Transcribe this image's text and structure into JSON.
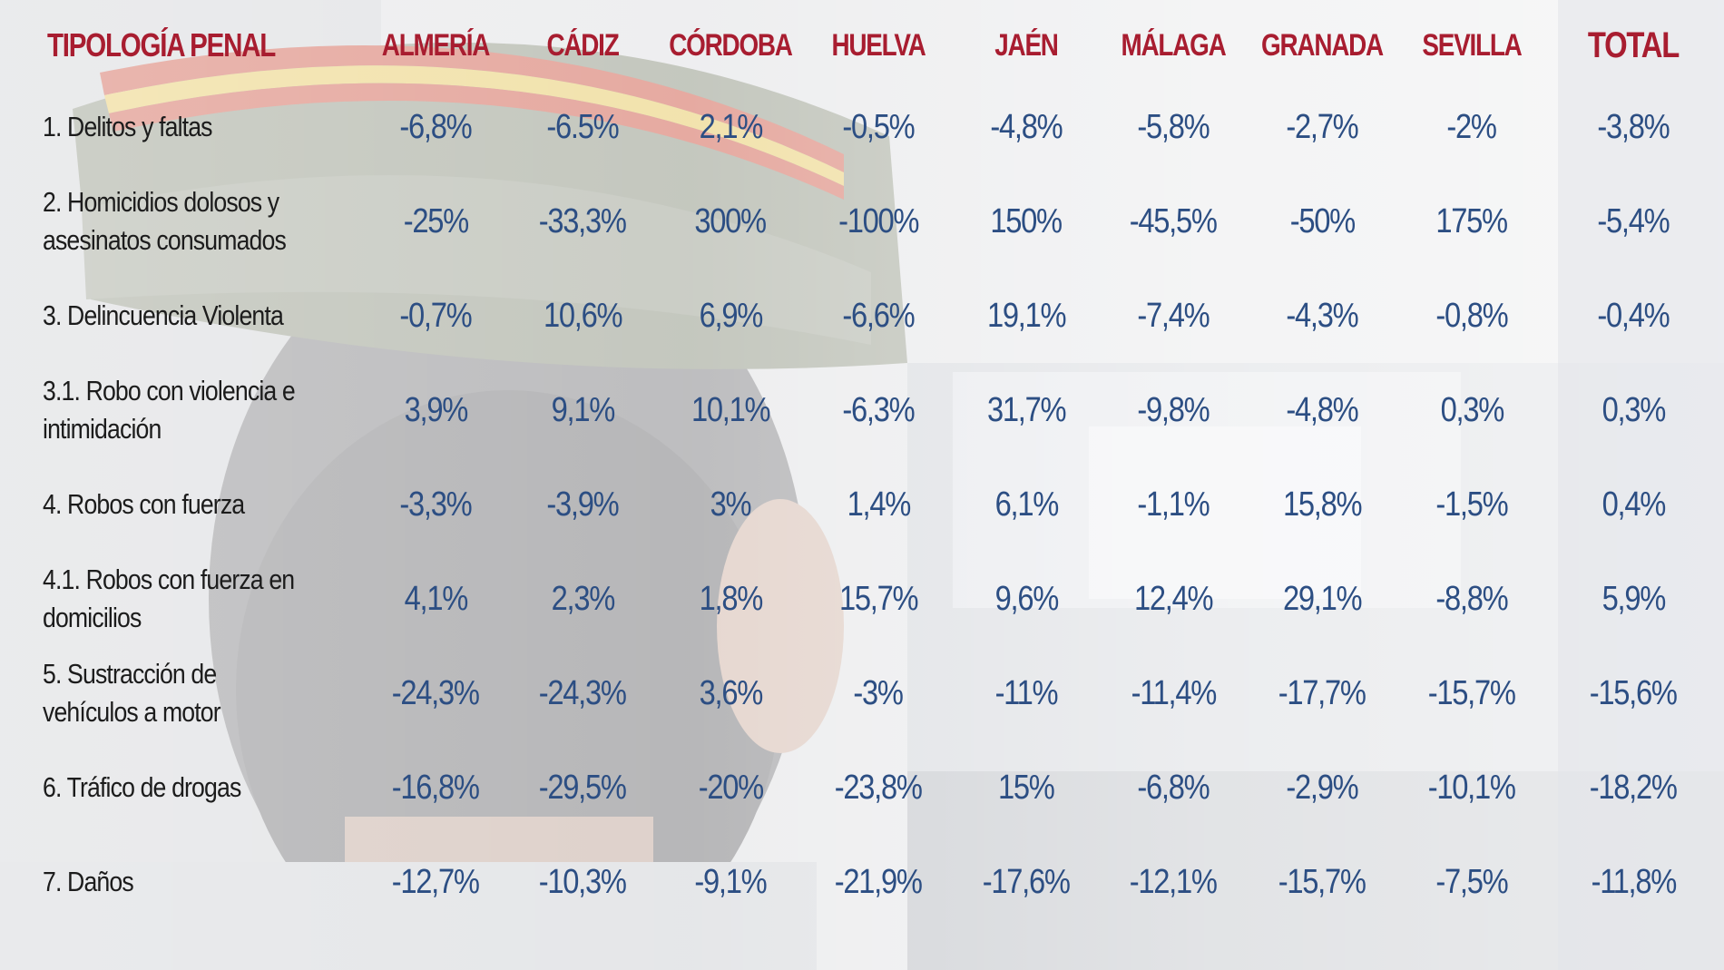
{
  "chart_data": {
    "type": "table",
    "columns": [
      "TIPOLOGÍA PENAL",
      "ALMERÍA",
      "CÁDIZ",
      "CÓRDOBA",
      "HUELVA",
      "JAÉN",
      "MÁLAGA",
      "GRANADA",
      "SEVILLA",
      "TOTAL"
    ],
    "rows": [
      {
        "label": "1. Delitos y faltas",
        "values": [
          "-6,8%",
          "-6.5%",
          "2,1%",
          "-0,5%",
          "-4,8%",
          "-5,8%",
          "-2,7%",
          "-2%",
          "-3,8%"
        ]
      },
      {
        "label": "2. Homicidios dolosos y asesinatos consumados",
        "values": [
          "-25%",
          "-33,3%",
          "300%",
          "-100%",
          "150%",
          "-45,5%",
          "-50%",
          "175%",
          "-5,4%"
        ]
      },
      {
        "label": "3. Delincuencia Violenta",
        "values": [
          "-0,7%",
          "10,6%",
          "6,9%",
          "-6,6%",
          "19,1%",
          "-7,4%",
          "-4,3%",
          "-0,8%",
          "-0,4%"
        ]
      },
      {
        "label": "3.1. Robo con violencia e intimidación",
        "values": [
          "3,9%",
          "9,1%",
          "10,1%",
          "-6,3%",
          "31,7%",
          "-9,8%",
          "-4,8%",
          "0,3%",
          "0,3%"
        ]
      },
      {
        "label": "4. Robos con fuerza",
        "values": [
          "-3,3%",
          "-3,9%",
          "3%",
          "1,4%",
          "6,1%",
          "-1,1%",
          "15,8%",
          "-1,5%",
          "0,4%"
        ]
      },
      {
        "label": "4.1. Robos con fuerza en domicilios",
        "values": [
          "4,1%",
          "2,3%",
          "1,8%",
          "15,7%",
          "9,6%",
          "12,4%",
          "29,1%",
          "-8,8%",
          "5,9%"
        ]
      },
      {
        "label": "5. Sustracción de vehículos a motor",
        "values": [
          "-24,3%",
          "-24,3%",
          "3,6%",
          "-3%",
          "-11%",
          "-11,4%",
          "-17,7%",
          "-15,7%",
          "-15,6%"
        ]
      },
      {
        "label": "6. Tráfico de drogas",
        "values": [
          "-16,8%",
          "-29,5%",
          "-20%",
          "-23,8%",
          "15%",
          "-6,8%",
          "-2,9%",
          "-10,1%",
          "-18,2%"
        ]
      },
      {
        "label": "7. Daños",
        "values": [
          "-12,7%",
          "-10,3%",
          "-9,1%",
          "-21,9%",
          "-17,6%",
          "-12,1%",
          "-15,7%",
          "-7,5%",
          "-11,8%"
        ]
      }
    ]
  },
  "colors": {
    "header_text": "#a81d30",
    "value_text": "#2c4e83",
    "label_text": "#1c1c1c"
  }
}
